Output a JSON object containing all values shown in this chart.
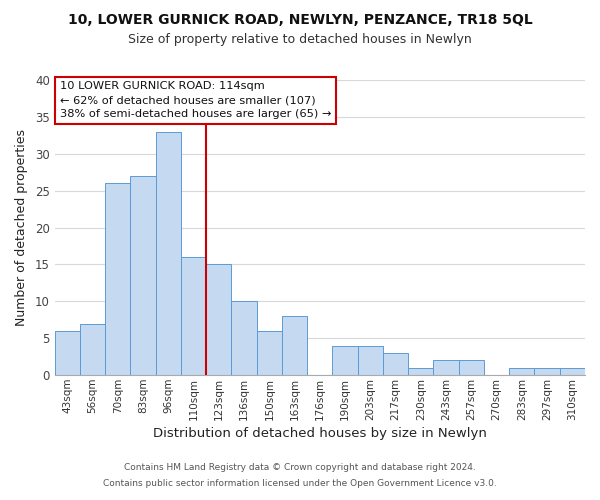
{
  "title": "10, LOWER GURNICK ROAD, NEWLYN, PENZANCE, TR18 5QL",
  "subtitle": "Size of property relative to detached houses in Newlyn",
  "xlabel": "Distribution of detached houses by size in Newlyn",
  "ylabel": "Number of detached properties",
  "bar_labels": [
    "43sqm",
    "56sqm",
    "70sqm",
    "83sqm",
    "96sqm",
    "110sqm",
    "123sqm",
    "136sqm",
    "150sqm",
    "163sqm",
    "176sqm",
    "190sqm",
    "203sqm",
    "217sqm",
    "230sqm",
    "243sqm",
    "257sqm",
    "270sqm",
    "283sqm",
    "297sqm",
    "310sqm"
  ],
  "bar_heights": [
    6,
    7,
    26,
    27,
    33,
    16,
    15,
    10,
    6,
    8,
    0,
    4,
    4,
    3,
    1,
    2,
    2,
    0,
    1,
    1,
    1
  ],
  "bar_color": "#c5d9f0",
  "bar_edge_color": "#5b9bd5",
  "vline_x": 5.5,
  "vline_color": "#cc0000",
  "annotation_line1": "10 LOWER GURNICK ROAD: 114sqm",
  "annotation_line2": "← 62% of detached houses are smaller (107)",
  "annotation_line3": "38% of semi-detached houses are larger (65) →",
  "annotation_box_color": "#ffffff",
  "annotation_box_edge": "#cc0000",
  "ylim": [
    0,
    40
  ],
  "yticks": [
    0,
    5,
    10,
    15,
    20,
    25,
    30,
    35,
    40
  ],
  "grid_color": "#d8d8d8",
  "footer_line1": "Contains HM Land Registry data © Crown copyright and database right 2024.",
  "footer_line2": "Contains public sector information licensed under the Open Government Licence v3.0.",
  "background_color": "#ffffff"
}
